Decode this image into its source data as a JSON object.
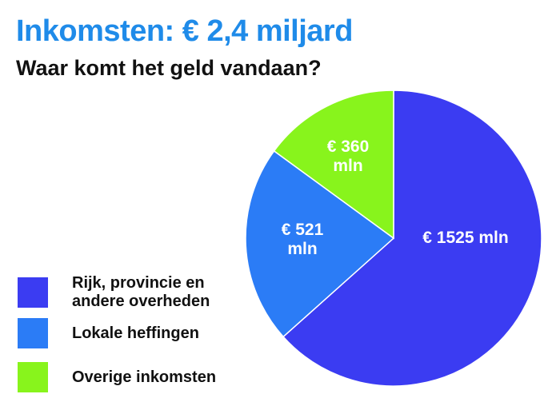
{
  "chart_data": {
    "type": "pie",
    "title": "Inkomsten: € 2,4 miljard",
    "subtitle": "Waar komt het geld vandaan?",
    "categories": [
      "Rijk, provincie en andere overheden",
      "Lokale heffingen",
      "Overige inkomsten"
    ],
    "values": [
      1525,
      521,
      360
    ],
    "value_labels": [
      "€ 1525 mln",
      "€ 521 mln",
      "€ 360 mln"
    ],
    "colors": [
      "#3b3cf2",
      "#2b7cf6",
      "#88f41c"
    ],
    "legend": "left"
  }
}
